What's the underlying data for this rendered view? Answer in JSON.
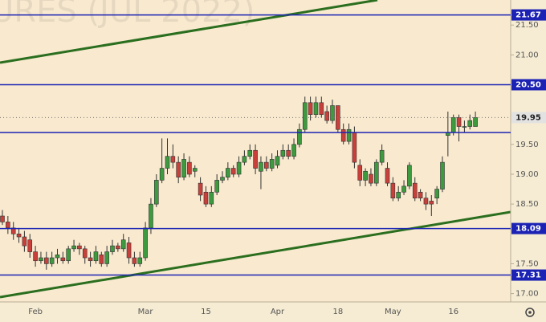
{
  "chart_data": {
    "type": "candlestick",
    "watermark": "URES (JUL 2022)",
    "categories": [
      null,
      null,
      null,
      null,
      null,
      null,
      "Feb",
      null,
      null,
      null,
      null,
      null,
      null,
      null,
      null,
      null,
      null,
      null,
      null,
      null,
      null,
      null,
      null,
      null,
      null,
      null,
      "Mar",
      null,
      null,
      null,
      null,
      null,
      null,
      null,
      null,
      null,
      null,
      "15",
      null,
      null,
      null,
      null,
      null,
      null,
      null,
      null,
      null,
      null,
      null,
      null,
      "Apr",
      null,
      null,
      null,
      null,
      null,
      null,
      null,
      null,
      null,
      null,
      "18",
      null,
      null,
      null,
      null,
      null,
      null,
      null,
      null,
      null,
      "May",
      null,
      null,
      null,
      null,
      null,
      null,
      null,
      null,
      null,
      null,
      "16",
      null,
      null,
      null,
      null
    ],
    "open": [
      18.3,
      18.2,
      18.1,
      18.0,
      17.95,
      17.9,
      17.7,
      17.55,
      17.6,
      17.5,
      17.6,
      17.6,
      17.55,
      17.75,
      17.8,
      17.75,
      17.6,
      17.55,
      17.65,
      17.5,
      17.7,
      17.8,
      17.75,
      17.85,
      17.6,
      17.5,
      17.6,
      18.1,
      18.5,
      18.9,
      19.1,
      19.3,
      19.2,
      18.95,
      19.2,
      19.05,
      18.85,
      18.7,
      18.5,
      18.7,
      18.9,
      18.95,
      19.1,
      19.0,
      19.2,
      19.3,
      19.4,
      19.05,
      19.2,
      19.1,
      19.15,
      19.3,
      19.4,
      19.3,
      19.5,
      19.75,
      20.2,
      20.0,
      20.2,
      20.05,
      19.9,
      20.15,
      19.75,
      19.55,
      19.7,
      19.15,
      18.9,
      19.0,
      18.85,
      19.2,
      19.1,
      18.85,
      18.6,
      18.7,
      18.8,
      18.85,
      18.7,
      18.6,
      18.55,
      18.6,
      18.75,
      19.65,
      19.7,
      19.95,
      19.8,
      19.8,
      19.8
    ],
    "high": [
      18.4,
      18.3,
      18.2,
      18.1,
      18.05,
      18.0,
      17.8,
      17.7,
      17.7,
      17.7,
      17.75,
      17.7,
      17.8,
      17.9,
      17.85,
      17.8,
      17.7,
      17.8,
      17.7,
      17.8,
      17.9,
      17.85,
      18.0,
      17.95,
      17.7,
      17.7,
      18.2,
      18.6,
      19.0,
      19.6,
      19.6,
      19.5,
      19.3,
      19.35,
      19.3,
      19.15,
      18.95,
      18.8,
      18.8,
      19.0,
      19.05,
      19.2,
      19.15,
      19.3,
      19.4,
      19.5,
      19.5,
      19.3,
      19.3,
      19.35,
      19.4,
      19.5,
      19.5,
      19.6,
      19.85,
      20.3,
      20.3,
      20.3,
      20.3,
      20.15,
      20.25,
      20.15,
      19.85,
      19.85,
      19.8,
      19.25,
      19.1,
      19.1,
      19.25,
      19.5,
      19.2,
      18.95,
      18.8,
      18.9,
      19.2,
      18.95,
      18.75,
      18.7,
      18.65,
      18.8,
      19.3,
      20.05,
      20.0,
      20.0,
      19.9,
      20.0,
      20.05
    ],
    "low": [
      18.15,
      18.0,
      17.9,
      17.85,
      17.7,
      17.6,
      17.45,
      17.5,
      17.4,
      17.45,
      17.5,
      17.5,
      17.5,
      17.7,
      17.65,
      17.5,
      17.45,
      17.5,
      17.45,
      17.45,
      17.65,
      17.7,
      17.7,
      17.5,
      17.45,
      17.45,
      17.55,
      18.0,
      18.45,
      18.85,
      19.0,
      19.1,
      18.85,
      18.9,
      18.95,
      18.95,
      18.55,
      18.45,
      18.45,
      18.65,
      18.85,
      18.9,
      18.95,
      18.95,
      19.15,
      19.25,
      19.0,
      18.75,
      19.05,
      19.05,
      19.1,
      19.25,
      19.25,
      19.25,
      19.45,
      19.7,
      19.9,
      19.95,
      19.95,
      19.85,
      19.85,
      19.7,
      19.5,
      19.5,
      19.1,
      18.8,
      18.8,
      18.8,
      18.8,
      19.15,
      18.8,
      18.55,
      18.55,
      18.65,
      18.75,
      18.55,
      18.55,
      18.4,
      18.3,
      18.5,
      18.7,
      19.3,
      19.65,
      19.55,
      19.7,
      19.75,
      19.8
    ],
    "close": [
      18.2,
      18.1,
      18.0,
      17.95,
      17.8,
      17.7,
      17.55,
      17.6,
      17.5,
      17.6,
      17.65,
      17.55,
      17.75,
      17.8,
      17.75,
      17.6,
      17.55,
      17.7,
      17.5,
      17.7,
      17.8,
      17.75,
      17.9,
      17.6,
      17.5,
      17.6,
      18.1,
      18.5,
      18.9,
      19.1,
      19.3,
      19.2,
      18.95,
      19.25,
      19.0,
      19.1,
      18.65,
      18.5,
      18.7,
      18.9,
      18.95,
      19.1,
      19.0,
      19.2,
      19.3,
      19.4,
      19.1,
      19.2,
      19.1,
      19.25,
      19.3,
      19.4,
      19.3,
      19.5,
      19.75,
      20.2,
      20.0,
      20.2,
      20.0,
      19.9,
      20.15,
      19.75,
      19.55,
      19.75,
      19.2,
      18.9,
      19.05,
      18.85,
      19.2,
      19.4,
      18.85,
      18.6,
      18.7,
      18.8,
      19.15,
      18.6,
      18.6,
      18.5,
      18.5,
      18.75,
      19.2,
      19.7,
      19.95,
      19.8,
      19.8,
      19.9,
      19.95
    ],
    "up_color": "#3d9a3f",
    "down_color": "#c9403b",
    "ylim": [
      16.86,
      21.92
    ],
    "yticks": [
      {
        "value": 17,
        "label": "17.00"
      },
      {
        "value": 17.5,
        "label": "17.50"
      },
      {
        "value": 18.5,
        "label": "18.50"
      },
      {
        "value": 19,
        "label": "19.00"
      },
      {
        "value": 19.5,
        "label": "19.50"
      },
      {
        "value": 21,
        "label": "21.00"
      },
      {
        "value": 21.5,
        "label": "21.50"
      }
    ],
    "levels": [
      {
        "value": 21.67,
        "label": "21.67"
      },
      {
        "value": 20.5,
        "label": "20.50"
      },
      {
        "value": 19.7
      },
      {
        "value": 18.09,
        "label": "18.09"
      },
      {
        "value": 17.31,
        "label": "17.31"
      }
    ],
    "level_color": "#1c23b4",
    "last_price": {
      "value": 19.95,
      "label": "19.95"
    }
  }
}
